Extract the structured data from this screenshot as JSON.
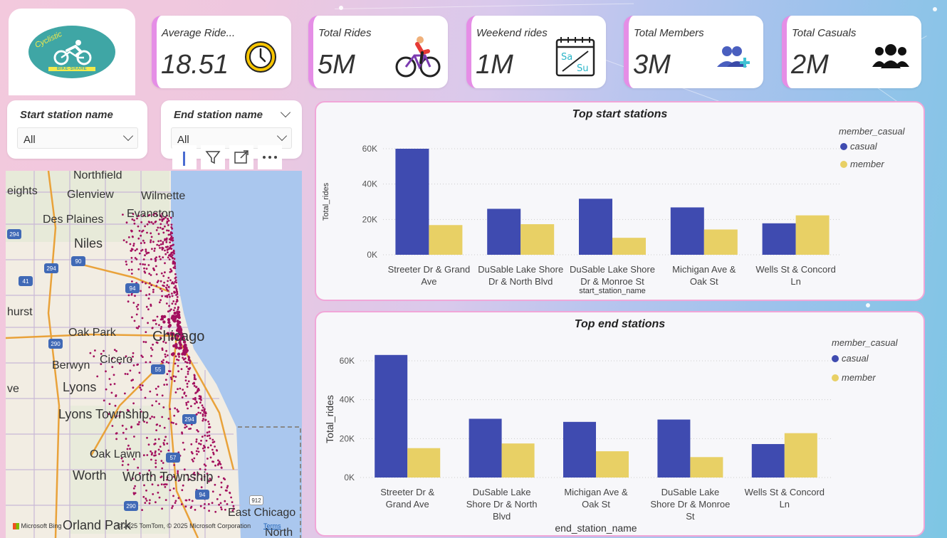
{
  "logo": {
    "text_top": "Cyclistic",
    "text_bottom": "BIKE-SHARE"
  },
  "kpis": [
    {
      "title": "Average Ride...",
      "value": "18.51",
      "icon": "clock-icon"
    },
    {
      "title": "Total Rides",
      "value": "5M",
      "icon": "cyclist-icon"
    },
    {
      "title": "Weekend rides",
      "value": "1M",
      "icon": "calendar-weekend-icon",
      "icon_text_sa": "Sa",
      "icon_text_su": "Su"
    },
    {
      "title": "Total Members",
      "value": "3M",
      "icon": "members-icon"
    },
    {
      "title": "Total Casuals",
      "value": "2M",
      "icon": "people-group-icon"
    }
  ],
  "slicers": {
    "start": {
      "title": "Start station name",
      "value": "All"
    },
    "end": {
      "title": "End station name",
      "value": "All"
    }
  },
  "map": {
    "toolbar": [
      "info-icon",
      "filter-icon",
      "focus-mode-icon",
      "more-options-icon"
    ],
    "labels": [
      {
        "text": "Northfield"
      },
      {
        "text": "eights"
      },
      {
        "text": "Glenview"
      },
      {
        "text": "Wilmette"
      },
      {
        "text": "Evanston"
      },
      {
        "text": "Des Plaines"
      },
      {
        "text": "Niles"
      },
      {
        "text": "hurst"
      },
      {
        "text": "Oak Park"
      },
      {
        "text": "Chicago"
      },
      {
        "text": "Cicero"
      },
      {
        "text": "Berwyn"
      },
      {
        "text": "Lyons"
      },
      {
        "text": "Lyons Township"
      },
      {
        "text": "Oak Lawn"
      },
      {
        "text": "Worth"
      },
      {
        "text": "Worth Township"
      },
      {
        "text": "East Chicago"
      },
      {
        "text": "Orland Park"
      },
      {
        "text": "North"
      },
      {
        "text": "ve"
      }
    ],
    "shields": [
      "294",
      "90",
      "94",
      "290",
      "55",
      "57",
      "294",
      "94",
      "912",
      "294",
      "41",
      "290"
    ],
    "attribution_brand": "Microsoft Bing",
    "attribution": "© 2025 TomTom, © 2025 Microsoft Corporation",
    "terms": "Terms"
  },
  "colors": {
    "casual": "#3f4bb0",
    "member": "#e8d065",
    "kpi_accent": "#e58ee6",
    "card_border": "#f1a6d8"
  },
  "chart_data": [
    {
      "type": "bar",
      "title": "Top start stations",
      "xlabel": "start_station_name",
      "ylabel": "Total_rides",
      "ylim": [
        0,
        60000
      ],
      "yticks": [
        "0K",
        "20K",
        "40K",
        "60K"
      ],
      "legend_title": "member_casual",
      "legend_position": "top-right",
      "categories": [
        [
          "Streeter Dr & Grand",
          "Ave"
        ],
        [
          "DuSable Lake Shore",
          "Dr & North Blvd"
        ],
        [
          "DuSable Lake Shore",
          "Dr & Monroe St"
        ],
        [
          "Michigan Ave &",
          "Oak St"
        ],
        [
          "Wells St & Concord",
          "Ln"
        ]
      ],
      "series": [
        {
          "name": "casual",
          "values": [
            60000,
            26000,
            31700,
            26800,
            17800
          ]
        },
        {
          "name": "member",
          "values": [
            16800,
            17300,
            9600,
            14300,
            22300
          ]
        }
      ]
    },
    {
      "type": "bar",
      "title": "Top end stations",
      "xlabel": "end_station_name",
      "ylabel": "Total_rides",
      "ylim": [
        0,
        60000
      ],
      "yticks": [
        "0K",
        "20K",
        "40K",
        "60K"
      ],
      "legend_title": "member_casual",
      "legend_position": "top-right",
      "categories": [
        [
          "Streeter Dr &",
          "Grand Ave"
        ],
        [
          "DuSable Lake",
          "Shore Dr & North",
          "Blvd"
        ],
        [
          "Michigan Ave &",
          "Oak St"
        ],
        [
          "DuSable Lake",
          "Shore Dr & Monroe",
          "St"
        ],
        [
          "Wells St & Concord",
          "Ln"
        ]
      ],
      "series": [
        {
          "name": "casual",
          "values": [
            63000,
            30200,
            28600,
            29800,
            17200
          ]
        },
        {
          "name": "member",
          "values": [
            15100,
            17500,
            13500,
            10500,
            22800
          ]
        }
      ]
    }
  ]
}
